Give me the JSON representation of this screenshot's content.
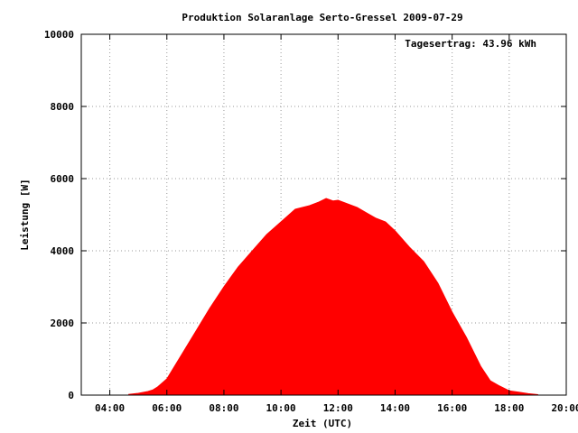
{
  "chart_data": {
    "type": "area",
    "title": "Produktion Solaranlage Serto-Gressel 2009-07-29",
    "annotation": "Tagesertrag: 43.96 kWh",
    "xlabel": "Zeit (UTC)",
    "ylabel": "Leistung [W]",
    "xlim": [
      "03:00",
      "20:00"
    ],
    "ylim": [
      0,
      10000
    ],
    "x_ticks": [
      "04:00",
      "06:00",
      "08:00",
      "10:00",
      "12:00",
      "14:00",
      "16:00",
      "18:00",
      "20:00"
    ],
    "y_ticks": [
      "0",
      "2000",
      "4000",
      "6000",
      "8000",
      "10000"
    ],
    "grid": true,
    "color": "#ff0000",
    "x": [
      "04:40",
      "05:00",
      "05:20",
      "05:30",
      "05:40",
      "06:00",
      "06:30",
      "07:00",
      "07:30",
      "08:00",
      "08:30",
      "09:00",
      "09:30",
      "10:00",
      "10:30",
      "11:00",
      "11:20",
      "11:35",
      "11:50",
      "12:00",
      "12:20",
      "12:40",
      "13:00",
      "13:20",
      "13:40",
      "14:00",
      "14:30",
      "15:00",
      "15:30",
      "16:00",
      "16:30",
      "17:00",
      "17:20",
      "17:40",
      "18:00",
      "18:20",
      "18:40",
      "19:00"
    ],
    "values": [
      20,
      50,
      100,
      140,
      220,
      450,
      1100,
      1750,
      2400,
      3000,
      3550,
      4000,
      4450,
      4800,
      5150,
      5250,
      5350,
      5450,
      5380,
      5400,
      5300,
      5200,
      5050,
      4900,
      4800,
      4550,
      4100,
      3700,
      3100,
      2300,
      1600,
      800,
      400,
      250,
      120,
      80,
      40,
      15
    ]
  }
}
